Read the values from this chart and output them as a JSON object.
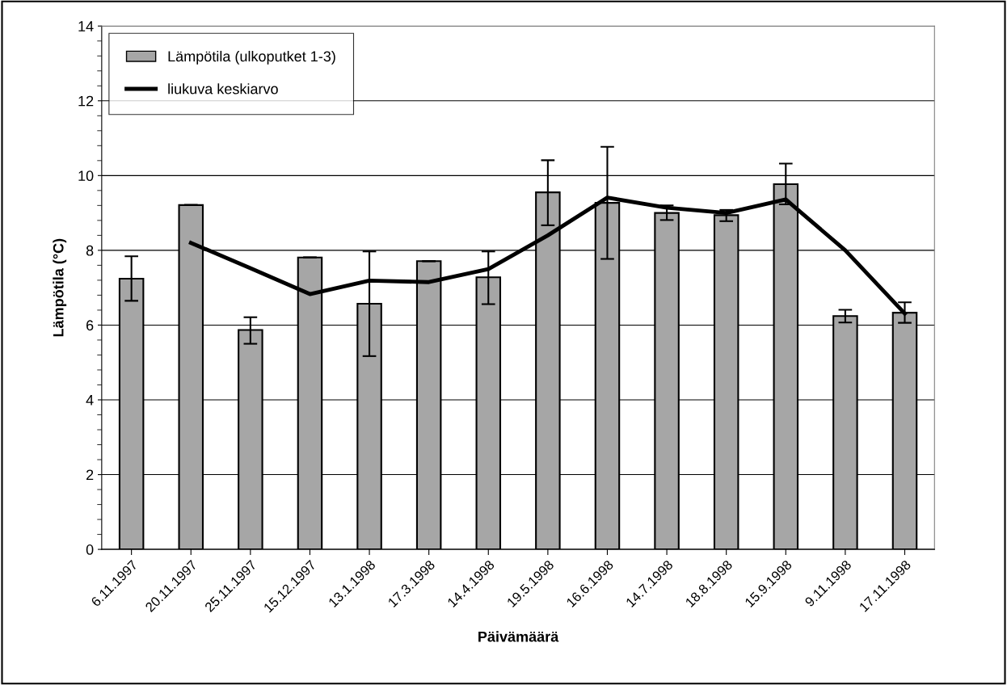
{
  "chart_data": {
    "type": "bar",
    "xlabel": "Päivämäärä",
    "ylabel": "Lämpötila (°C)",
    "categories": [
      "6.11.1997",
      "20.11.1997",
      "25.11.1997",
      "15.12.1997",
      "13.1.1998",
      "17.3.1998",
      "14.4.1998",
      "19.5.1998",
      "16.6.1998",
      "14.7.1998",
      "18.8.1998",
      "15.9.1998",
      "9.11.1998",
      "17.11.1998"
    ],
    "series": [
      {
        "name": "Lämpötila (ulkoputket 1-3)",
        "color": "#a6a6a6",
        "values": [
          7.24,
          9.21,
          5.87,
          7.81,
          6.57,
          7.71,
          7.28,
          9.55,
          9.27,
          9.0,
          8.94,
          9.77,
          6.24,
          6.33
        ],
        "errors": [
          [
            6.65,
            7.84
          ],
          [
            9.21,
            9.21
          ],
          [
            5.5,
            6.21
          ],
          [
            7.81,
            7.81
          ],
          [
            5.17,
            7.97
          ],
          [
            7.71,
            7.71
          ],
          [
            6.56,
            7.97
          ],
          [
            8.67,
            10.41
          ],
          [
            7.77,
            10.77
          ],
          [
            8.81,
            9.2
          ],
          [
            8.78,
            9.08
          ],
          [
            9.23,
            10.32
          ],
          [
            6.07,
            6.41
          ],
          [
            6.06,
            6.61
          ]
        ]
      },
      {
        "name": "liukuva keskiarvo",
        "type": "line",
        "color": "#000000",
        "values": [
          null,
          8.2,
          7.52,
          6.83,
          7.19,
          7.15,
          7.5,
          8.4,
          9.41,
          9.14,
          9.0,
          9.36,
          8.0,
          6.31
        ]
      }
    ],
    "ylim": [
      0,
      14
    ],
    "yticks": [
      0,
      2,
      4,
      6,
      8,
      10,
      12,
      14
    ],
    "grid": "y",
    "legend": "top left",
    "marker": "none",
    "line_style": "solid"
  }
}
